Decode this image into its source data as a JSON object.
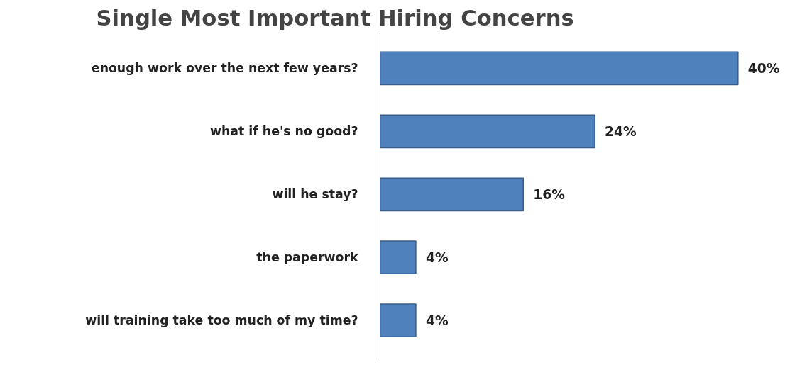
{
  "chart_data": {
    "type": "bar",
    "orientation": "horizontal",
    "title": "Single Most Important Hiring Concerns",
    "categories": [
      "enough work over the next few years?",
      "what if he's no good?",
      "will he stay?",
      "the paperwork",
      "will training take too much of my time?"
    ],
    "values": [
      40,
      24,
      16,
      4,
      4
    ],
    "value_labels": [
      "40%",
      "24%",
      "16%",
      "4%",
      "4%"
    ],
    "color": "#4f81bd",
    "grid": false
  }
}
